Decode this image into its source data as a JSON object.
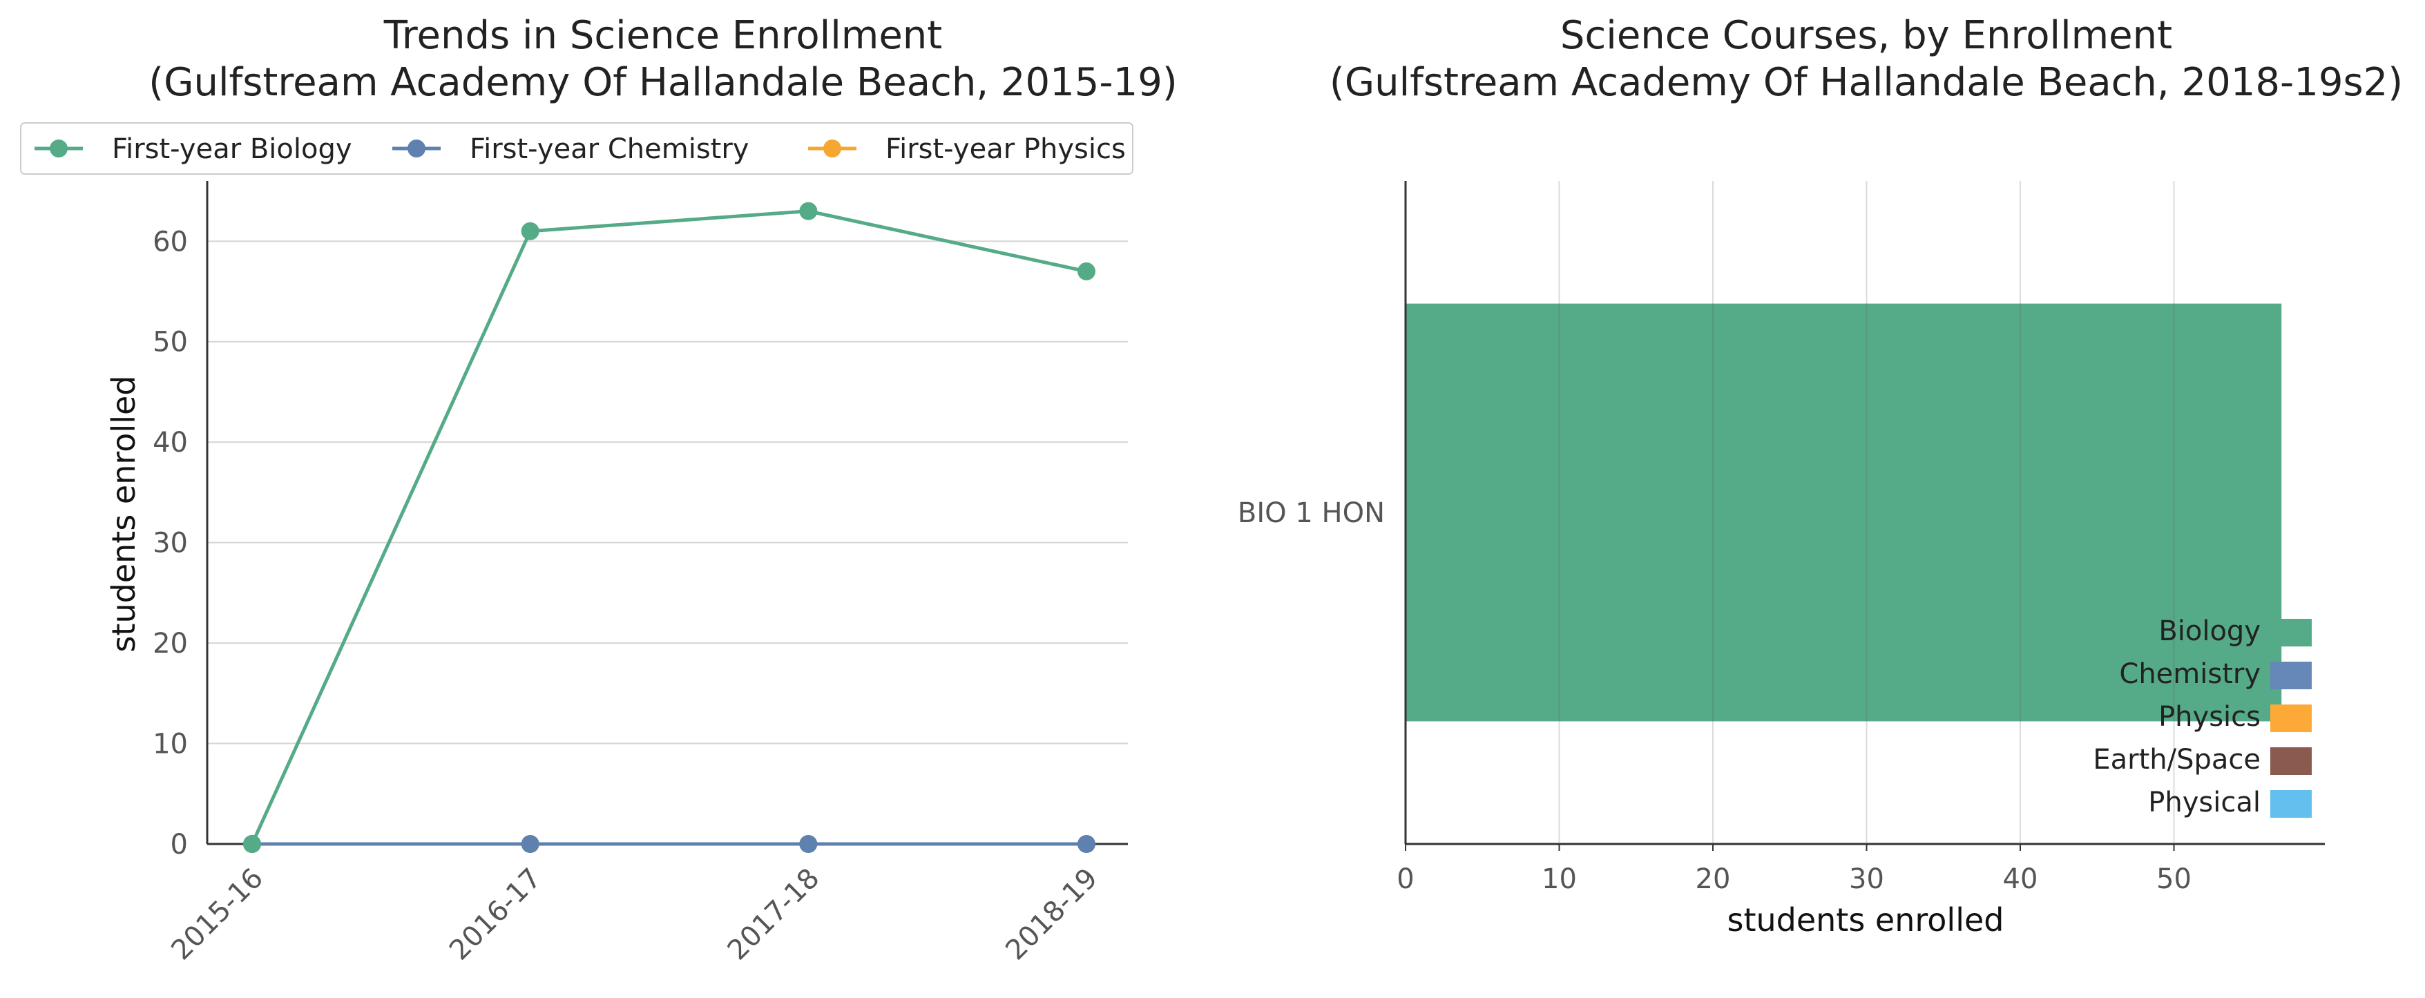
{
  "chart_data": [
    {
      "type": "line",
      "title_line1": "Trends in Science Enrollment",
      "title_line2": "(Gulfstream Academy Of Hallandale Beach, 2015-19)",
      "ylabel": "students enrolled",
      "xlabel": "",
      "categories": [
        "2015-16",
        "2016-17",
        "2017-18",
        "2018-19"
      ],
      "ylim": [
        0,
        66
      ],
      "yticks": [
        0,
        10,
        20,
        30,
        40,
        50,
        60
      ],
      "grid": "horizontal",
      "legend": "top",
      "series": [
        {
          "name": "First-year Biology",
          "color": "#55aa88",
          "values": [
            0,
            61,
            63,
            57
          ]
        },
        {
          "name": "First-year Chemistry",
          "color": "#5e81b0",
          "values": [
            0,
            0,
            0,
            0
          ]
        },
        {
          "name": "First-year Physics",
          "color": "#f5a731",
          "values": [
            0,
            0,
            0,
            0
          ]
        }
      ]
    },
    {
      "type": "bar",
      "orientation": "horizontal",
      "title_line1": "Science Courses, by Enrollment",
      "title_line2": "(Gulfstream Academy Of Hallandale Beach, 2018-19s2)",
      "xlabel": "students enrolled",
      "ylabel": "",
      "categories": [
        "BIO 1 HON"
      ],
      "values": [
        57
      ],
      "bar_colors": [
        "#55aa88"
      ],
      "xlim": [
        0,
        60
      ],
      "xticks": [
        0,
        10,
        20,
        30,
        40,
        50
      ],
      "grid": "vertical",
      "legend": "lower-right",
      "legend_items": [
        {
          "label": "Biology",
          "color": "#55aa88"
        },
        {
          "label": "Chemistry",
          "color": "#6688b8"
        },
        {
          "label": "Physics",
          "color": "#fca938"
        },
        {
          "label": "Earth/Space",
          "color": "#8b5a4e"
        },
        {
          "label": "Physical",
          "color": "#62bfee"
        }
      ]
    }
  ]
}
